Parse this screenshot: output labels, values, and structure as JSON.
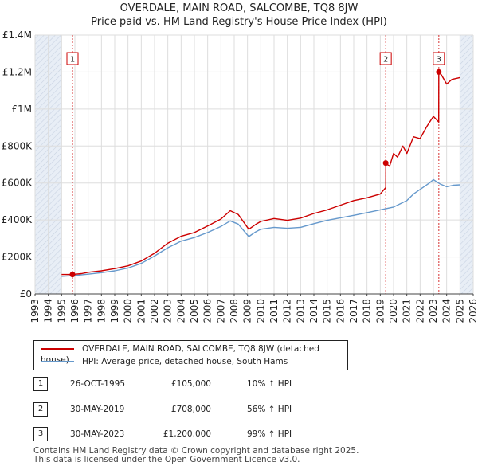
{
  "title": "OVERDALE, MAIN ROAD, SALCOMBE, TQ8 8JW",
  "subtitle": "Price paid vs. HM Land Registry's House Price Index (HPI)",
  "colors": {
    "property": "#cc0000",
    "hpi": "#6699cc",
    "grid": "#dddddd",
    "shade": "#e8eef6",
    "vline": "#cc0000"
  },
  "chart_data": {
    "type": "line",
    "title": "OVERDALE, MAIN ROAD, SALCOMBE, TQ8 8JW",
    "subtitle": "Price paid vs. HM Land Registry's House Price Index (HPI)",
    "xlabel": "",
    "ylabel": "",
    "xlim": [
      1993,
      2026
    ],
    "ylim": [
      0,
      1400000
    ],
    "y_ticks": [
      0,
      200000,
      400000,
      600000,
      800000,
      1000000,
      1200000,
      1400000
    ],
    "y_tick_labels": [
      "£0",
      "£200K",
      "£400K",
      "£600K",
      "£800K",
      "£1M",
      "£1.2M",
      "£1.4M"
    ],
    "x_ticks": [
      "1993",
      "1994",
      "1995",
      "1996",
      "1997",
      "1998",
      "1999",
      "2000",
      "2001",
      "2002",
      "2003",
      "2004",
      "2005",
      "2006",
      "2007",
      "2008",
      "2009",
      "2010",
      "2011",
      "2012",
      "2013",
      "2014",
      "2015",
      "2016",
      "2017",
      "2018",
      "2019",
      "2020",
      "2021",
      "2022",
      "2023",
      "2024",
      "2025",
      "2026"
    ],
    "grid": true,
    "hatched_regions": [
      [
        1993,
        1995.0
      ],
      [
        2025.0,
        2026
      ]
    ],
    "series": [
      {
        "name": "OVERDALE, MAIN ROAD, SALCOMBE, TQ8 8JW (detached house)",
        "color": "#cc0000",
        "x": [
          1995.0,
          1995.82,
          1996.5,
          1997,
          1998,
          1999,
          2000,
          2001,
          2002,
          2003,
          2004,
          2005,
          2006,
          2007,
          2007.7,
          2008.3,
          2009.1,
          2009.6,
          2010,
          2011,
          2012,
          2013,
          2014,
          2015,
          2016,
          2017,
          2018,
          2019.0,
          2019.41,
          2019.42,
          2019.7,
          2020,
          2020.3,
          2020.7,
          2021,
          2021.5,
          2022,
          2022.5,
          2023.0,
          2023.4,
          2023.41,
          2023.6,
          2024.0,
          2024.4,
          2025.0
        ],
        "y": [
          105000,
          105000,
          110000,
          117000,
          125000,
          137000,
          152000,
          178000,
          220000,
          275000,
          312000,
          332000,
          368000,
          405000,
          450000,
          430000,
          350000,
          375000,
          392000,
          408000,
          398000,
          410000,
          435000,
          455000,
          480000,
          505000,
          520000,
          540000,
          575000,
          708000,
          690000,
          760000,
          740000,
          800000,
          760000,
          850000,
          840000,
          905000,
          960000,
          930000,
          1200000,
          1185000,
          1135000,
          1160000,
          1170000
        ]
      },
      {
        "name": "HPI: Average price, detached house, South Hams",
        "color": "#6699cc",
        "x": [
          1995.0,
          1996,
          1997,
          1998,
          1999,
          2000,
          2001,
          2002,
          2003,
          2004,
          2005,
          2006,
          2007,
          2007.7,
          2008.3,
          2009.1,
          2009.6,
          2010,
          2011,
          2012,
          2013,
          2014,
          2015,
          2016,
          2017,
          2018,
          2019,
          2020,
          2021,
          2021.5,
          2022,
          2022.7,
          2023,
          2023.5,
          2024,
          2024.5,
          2025.0
        ],
        "y": [
          95000,
          100000,
          107000,
          115000,
          125000,
          140000,
          165000,
          205000,
          250000,
          285000,
          305000,
          332000,
          365000,
          395000,
          378000,
          310000,
          335000,
          350000,
          360000,
          355000,
          360000,
          380000,
          398000,
          412000,
          425000,
          440000,
          455000,
          470000,
          505000,
          540000,
          565000,
          600000,
          618000,
          595000,
          580000,
          588000,
          590000
        ]
      }
    ],
    "markers": [
      {
        "label": "1",
        "x": 1995.82,
        "y": 105000
      },
      {
        "label": "2",
        "x": 2019.41,
        "y": 708000
      },
      {
        "label": "3",
        "x": 2023.41,
        "y": 1200000
      }
    ]
  },
  "legend": {
    "property_label": "OVERDALE, MAIN ROAD, SALCOMBE, TQ8 8JW (detached house)",
    "hpi_label": "HPI: Average price, detached house, South Hams"
  },
  "sales": [
    {
      "num": "1",
      "date": "26-OCT-1995",
      "price": "£105,000",
      "hpi": "10% ↑ HPI"
    },
    {
      "num": "2",
      "date": "30-MAY-2019",
      "price": "£708,000",
      "hpi": "56% ↑ HPI"
    },
    {
      "num": "3",
      "date": "30-MAY-2023",
      "price": "£1,200,000",
      "hpi": "99% ↑ HPI"
    }
  ],
  "footer": {
    "line1": "Contains HM Land Registry data © Crown copyright and database right 2025.",
    "line2": "This data is licensed under the Open Government Licence v3.0."
  }
}
